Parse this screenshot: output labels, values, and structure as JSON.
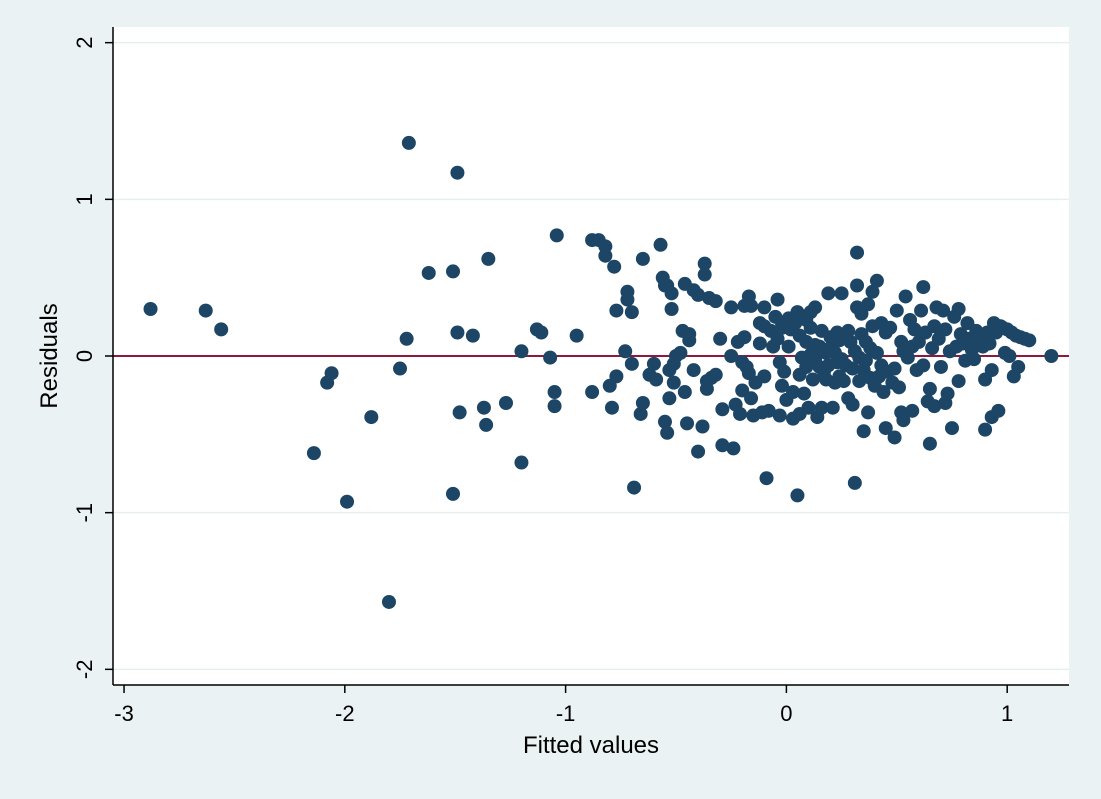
{
  "chart_data": {
    "type": "scatter",
    "xlabel": "Fitted values",
    "ylabel": "Residuals",
    "xlim": [
      -3.05,
      1.28
    ],
    "ylim": [
      -2.1,
      2.1
    ],
    "x_ticks": [
      -3,
      -2,
      -1,
      0,
      1
    ],
    "y_ticks": [
      -2,
      -1,
      0,
      1,
      2
    ],
    "x_tick_labels": [
      "-3",
      "-2",
      "-1",
      "0",
      "1"
    ],
    "y_tick_labels": [
      "-2",
      "-1",
      "0",
      "1",
      "2"
    ],
    "grid": "horizontal",
    "reference_line_y": 0,
    "colors": {
      "background": "#eaf2f3",
      "plot_area": "#ffffff",
      "grid": "#e6eef0",
      "marker": "#1c4566",
      "reference_line": "#8b1a3d"
    },
    "points": [
      [
        -2.88,
        0.3
      ],
      [
        -2.63,
        0.29
      ],
      [
        -2.56,
        0.17
      ],
      [
        -2.14,
        -0.62
      ],
      [
        -2.08,
        -0.17
      ],
      [
        -2.06,
        -0.11
      ],
      [
        -1.99,
        -0.93
      ],
      [
        -1.88,
        -0.39
      ],
      [
        -1.8,
        -1.57
      ],
      [
        -1.75,
        -0.08
      ],
      [
        -1.72,
        0.11
      ],
      [
        -1.71,
        1.36
      ],
      [
        -1.62,
        0.53
      ],
      [
        -1.51,
        0.54
      ],
      [
        -1.51,
        -0.88
      ],
      [
        -1.49,
        1.17
      ],
      [
        -1.49,
        0.15
      ],
      [
        -1.48,
        -0.36
      ],
      [
        -1.42,
        0.13
      ],
      [
        -1.37,
        -0.33
      ],
      [
        -1.36,
        -0.44
      ],
      [
        -1.35,
        0.62
      ],
      [
        -1.27,
        -0.3
      ],
      [
        -1.2,
        0.03
      ],
      [
        -1.2,
        -0.68
      ],
      [
        -1.13,
        0.17
      ],
      [
        -1.11,
        0.15
      ],
      [
        -1.07,
        -0.01
      ],
      [
        -1.05,
        -0.23
      ],
      [
        -1.05,
        -0.32
      ],
      [
        -1.04,
        0.77
      ],
      [
        -0.95,
        0.13
      ],
      [
        -0.88,
        0.74
      ],
      [
        -0.88,
        -0.23
      ],
      [
        -0.85,
        0.74
      ],
      [
        -0.82,
        0.7
      ],
      [
        -0.82,
        0.64
      ],
      [
        -0.8,
        -0.19
      ],
      [
        -0.79,
        -0.33
      ],
      [
        -0.78,
        0.57
      ],
      [
        -0.77,
        0.29
      ],
      [
        -0.77,
        -0.13
      ],
      [
        -0.73,
        0.03
      ],
      [
        -0.72,
        0.41
      ],
      [
        -0.72,
        0.36
      ],
      [
        -0.7,
        0.28
      ],
      [
        -0.7,
        -0.05
      ],
      [
        -0.69,
        -0.84
      ],
      [
        -0.66,
        -0.37
      ],
      [
        -0.65,
        0.62
      ],
      [
        -0.65,
        -0.3
      ],
      [
        -0.62,
        -0.12
      ],
      [
        -0.6,
        -0.05
      ],
      [
        -0.59,
        -0.15
      ],
      [
        -0.57,
        0.71
      ],
      [
        -0.56,
        0.5
      ],
      [
        -0.55,
        0.45
      ],
      [
        -0.55,
        -0.42
      ],
      [
        -0.54,
        0.45
      ],
      [
        -0.54,
        -0.49
      ],
      [
        -0.53,
        -0.27
      ],
      [
        -0.53,
        -0.09
      ],
      [
        -0.52,
        0.4
      ],
      [
        -0.52,
        0.3
      ],
      [
        -0.51,
        -0.05
      ],
      [
        -0.51,
        -0.17
      ],
      [
        -0.5,
        0.0
      ],
      [
        -0.48,
        0.02
      ],
      [
        -0.47,
        0.16
      ],
      [
        -0.46,
        0.46
      ],
      [
        -0.46,
        -0.23
      ],
      [
        -0.45,
        -0.43
      ],
      [
        -0.44,
        0.14
      ],
      [
        -0.44,
        0.1
      ],
      [
        -0.42,
        0.42
      ],
      [
        -0.42,
        -0.09
      ],
      [
        -0.4,
        0.39
      ],
      [
        -0.4,
        -0.61
      ],
      [
        -0.38,
        -0.45
      ],
      [
        -0.37,
        0.59
      ],
      [
        -0.37,
        0.52
      ],
      [
        -0.36,
        -0.21
      ],
      [
        -0.36,
        -0.16
      ],
      [
        -0.35,
        0.37
      ],
      [
        -0.34,
        -0.14
      ],
      [
        -0.32,
        0.35
      ],
      [
        -0.32,
        -0.12
      ],
      [
        -0.3,
        0.11
      ],
      [
        -0.29,
        -0.34
      ],
      [
        -0.29,
        -0.57
      ],
      [
        -0.25,
        0.31
      ],
      [
        -0.25,
        0.0
      ],
      [
        -0.24,
        -0.59
      ],
      [
        -0.23,
        -0.31
      ],
      [
        -0.22,
        0.09
      ],
      [
        -0.21,
        -0.37
      ],
      [
        -0.2,
        -0.04
      ],
      [
        -0.2,
        -0.22
      ],
      [
        -0.19,
        0.32
      ],
      [
        -0.19,
        0.12
      ],
      [
        -0.18,
        -0.07
      ],
      [
        -0.17,
        0.38
      ],
      [
        -0.17,
        -0.11
      ],
      [
        -0.16,
        0.32
      ],
      [
        -0.16,
        -0.27
      ],
      [
        -0.15,
        -0.38
      ],
      [
        -0.14,
        -0.17
      ],
      [
        -0.12,
        0.21
      ],
      [
        -0.12,
        0.08
      ],
      [
        -0.11,
        -0.36
      ],
      [
        -0.1,
        0.31
      ],
      [
        -0.1,
        0.19
      ],
      [
        -0.1,
        -0.13
      ],
      [
        -0.09,
        -0.78
      ],
      [
        -0.08,
        -0.35
      ],
      [
        -0.07,
        0.16
      ],
      [
        -0.06,
        0.06
      ],
      [
        -0.05,
        0.25
      ],
      [
        -0.04,
        0.36
      ],
      [
        -0.04,
        0.11
      ],
      [
        -0.03,
        -0.04
      ],
      [
        -0.03,
        -0.38
      ],
      [
        -0.02,
        0.21
      ],
      [
        -0.02,
        0.18
      ],
      [
        -0.02,
        -0.19
      ],
      [
        -0.01,
        -0.1
      ],
      [
        0.0,
        -0.28
      ],
      [
        0.01,
        0.24
      ],
      [
        0.01,
        0.2
      ],
      [
        0.01,
        0.06
      ],
      [
        0.02,
        0.17
      ],
      [
        0.03,
        -0.23
      ],
      [
        0.03,
        -0.4
      ],
      [
        0.04,
        0.21
      ],
      [
        0.05,
        0.28
      ],
      [
        0.05,
        -0.89
      ],
      [
        0.06,
        0.13
      ],
      [
        0.06,
        -0.12
      ],
      [
        0.06,
        -0.37
      ],
      [
        0.07,
        0.24
      ],
      [
        0.07,
        -0.01
      ],
      [
        0.08,
        -0.24
      ],
      [
        0.09,
        0.23
      ],
      [
        0.09,
        0.09
      ],
      [
        0.09,
        -0.07
      ],
      [
        0.1,
        -0.33
      ],
      [
        0.11,
        0.28
      ],
      [
        0.11,
        0.18
      ],
      [
        0.11,
        0.01
      ],
      [
        0.12,
        -0.15
      ],
      [
        0.13,
        0.31
      ],
      [
        0.13,
        0.07
      ],
      [
        0.13,
        -0.02
      ],
      [
        0.14,
        -0.39
      ],
      [
        0.15,
        0.06
      ],
      [
        0.15,
        -0.07
      ],
      [
        0.16,
        0.16
      ],
      [
        0.16,
        -0.33
      ],
      [
        0.17,
        0.04
      ],
      [
        0.17,
        -0.1
      ],
      [
        0.18,
        -0.15
      ],
      [
        0.18,
        0.02
      ],
      [
        0.19,
        0.4
      ],
      [
        0.19,
        -0.06
      ],
      [
        0.2,
        0.12
      ],
      [
        0.21,
        0.07
      ],
      [
        0.21,
        -0.33
      ],
      [
        0.22,
        0.02
      ],
      [
        0.22,
        -0.17
      ],
      [
        0.23,
        0.15
      ],
      [
        0.23,
        -0.04
      ],
      [
        0.24,
        0.1
      ],
      [
        0.24,
        -0.13
      ],
      [
        0.25,
        -0.02
      ],
      [
        0.25,
        0.4
      ],
      [
        0.26,
        -0.16
      ],
      [
        0.27,
        -0.06
      ],
      [
        0.28,
        0.16
      ],
      [
        0.28,
        -0.27
      ],
      [
        0.29,
        0.09
      ],
      [
        0.3,
        -0.08
      ],
      [
        0.3,
        -0.31
      ],
      [
        0.31,
        -0.81
      ],
      [
        0.31,
        0.03
      ],
      [
        0.32,
        0.31
      ],
      [
        0.32,
        0.45
      ],
      [
        0.32,
        0.66
      ],
      [
        0.33,
        -0.01
      ],
      [
        0.33,
        -0.16
      ],
      [
        0.34,
        0.14
      ],
      [
        0.34,
        0.27
      ],
      [
        0.35,
        -0.09
      ],
      [
        0.35,
        -0.48
      ],
      [
        0.36,
        0.09
      ],
      [
        0.36,
        -0.03
      ],
      [
        0.37,
        -0.36
      ],
      [
        0.37,
        0.33
      ],
      [
        0.38,
        0.05
      ],
      [
        0.38,
        -0.14
      ],
      [
        0.39,
        0.41
      ],
      [
        0.39,
        0.19
      ],
      [
        0.4,
        -0.19
      ],
      [
        0.41,
        0.48
      ],
      [
        0.41,
        0.02
      ],
      [
        0.42,
        -0.13
      ],
      [
        0.43,
        0.21
      ],
      [
        0.43,
        -0.06
      ],
      [
        0.44,
        -0.23
      ],
      [
        0.45,
        0.15
      ],
      [
        0.45,
        -0.46
      ],
      [
        0.46,
        -0.1
      ],
      [
        0.47,
        0.18
      ],
      [
        0.48,
        -0.17
      ],
      [
        0.49,
        -0.08
      ],
      [
        0.49,
        -0.52
      ],
      [
        0.5,
        0.29
      ],
      [
        0.51,
        -0.2
      ],
      [
        0.52,
        0.09
      ],
      [
        0.52,
        -0.36
      ],
      [
        0.53,
        0.03
      ],
      [
        0.53,
        -0.41
      ],
      [
        0.54,
        0.38
      ],
      [
        0.55,
        -0.01
      ],
      [
        0.56,
        0.23
      ],
      [
        0.57,
        0.06
      ],
      [
        0.57,
        -0.35
      ],
      [
        0.58,
        0.17
      ],
      [
        0.59,
        -0.09
      ],
      [
        0.6,
        0.09
      ],
      [
        0.61,
        0.29
      ],
      [
        0.62,
        0.44
      ],
      [
        0.62,
        -0.06
      ],
      [
        0.63,
        0.15
      ],
      [
        0.64,
        -0.29
      ],
      [
        0.65,
        -0.21
      ],
      [
        0.65,
        -0.56
      ],
      [
        0.66,
        0.05
      ],
      [
        0.67,
        0.19
      ],
      [
        0.67,
        -0.32
      ],
      [
        0.68,
        0.31
      ],
      [
        0.69,
        0.11
      ],
      [
        0.7,
        -0.07
      ],
      [
        0.71,
        0.29
      ],
      [
        0.72,
        -0.3
      ],
      [
        0.72,
        0.17
      ],
      [
        0.73,
        -0.24
      ],
      [
        0.74,
        0.03
      ],
      [
        0.75,
        -0.46
      ],
      [
        0.76,
        0.25
      ],
      [
        0.77,
        0.06
      ],
      [
        0.78,
        0.3
      ],
      [
        0.78,
        -0.16
      ],
      [
        0.79,
        0.14
      ],
      [
        0.8,
        0.08
      ],
      [
        0.81,
        -0.03
      ],
      [
        0.82,
        0.21
      ],
      [
        0.83,
        0.11
      ],
      [
        0.84,
        0.04
      ],
      [
        0.85,
        -0.02
      ],
      [
        0.86,
        0.16
      ],
      [
        0.87,
        0.07
      ],
      [
        0.88,
        0.12
      ],
      [
        0.89,
        0.06
      ],
      [
        0.9,
        -0.47
      ],
      [
        0.9,
        -0.15
      ],
      [
        0.91,
        0.15
      ],
      [
        0.92,
        0.08
      ],
      [
        0.93,
        -0.09
      ],
      [
        0.93,
        -0.39
      ],
      [
        0.94,
        0.21
      ],
      [
        0.95,
        0.15
      ],
      [
        0.96,
        -0.35
      ],
      [
        0.97,
        0.19
      ],
      [
        0.98,
        0.18
      ],
      [
        0.99,
        0.02
      ],
      [
        1.0,
        0.17
      ],
      [
        1.01,
        0.0
      ],
      [
        1.02,
        0.15
      ],
      [
        1.03,
        -0.13
      ],
      [
        1.04,
        0.13
      ],
      [
        1.05,
        -0.07
      ],
      [
        1.06,
        0.12
      ],
      [
        1.08,
        0.11
      ],
      [
        1.1,
        0.1
      ],
      [
        1.2,
        0.0
      ]
    ]
  }
}
